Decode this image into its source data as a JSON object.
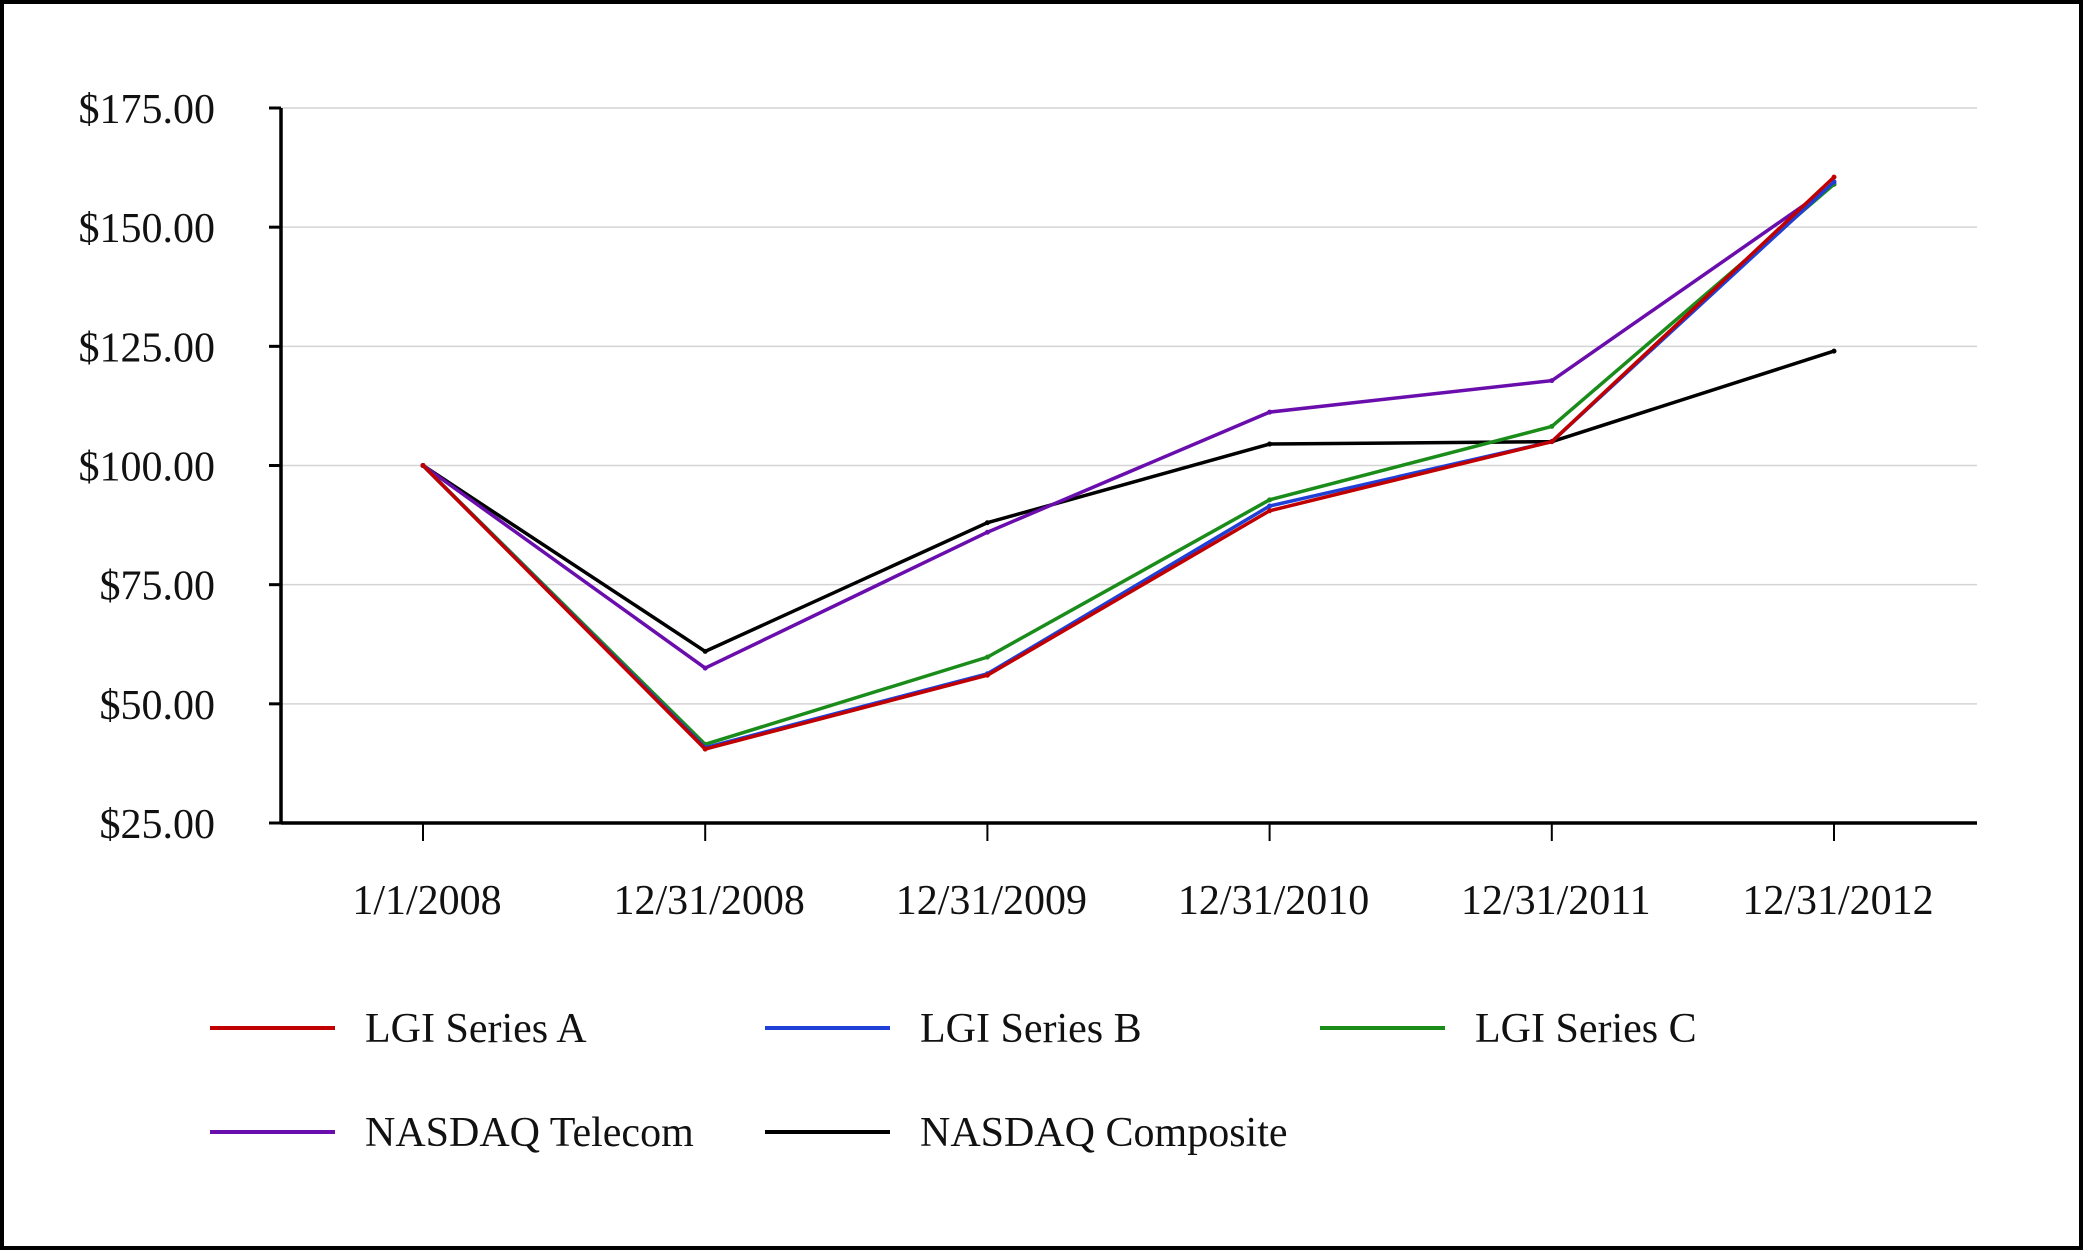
{
  "chart_data": {
    "type": "line",
    "title": "",
    "xlabel": "",
    "ylabel": "",
    "categories": [
      "1/1/2008",
      "12/31/2008",
      "12/31/2009",
      "12/31/2010",
      "12/31/2011",
      "12/31/2012"
    ],
    "ylim": [
      25,
      175
    ],
    "y_ticks": [
      25,
      50,
      75,
      100,
      125,
      150,
      175
    ],
    "y_tick_labels": [
      "$25.00",
      "$50.00",
      "$75.00",
      "$100.00",
      "$125.00",
      "$150.00",
      "$175.00"
    ],
    "grid": true,
    "legend_position": "bottom",
    "series": [
      {
        "key": "lgi-series-a",
        "name": "LGI Series A",
        "color": "#c00000",
        "values": [
          100.0,
          40.5,
          56.0,
          90.5,
          105.0,
          160.5
        ]
      },
      {
        "key": "lgi-series-b",
        "name": "LGI Series B",
        "color": "#1f3fd6",
        "values": [
          100.0,
          40.8,
          56.3,
          91.5,
          105.0,
          159.5
        ]
      },
      {
        "key": "lgi-series-c",
        "name": "LGI Series C",
        "color": "#1a8c1a",
        "values": [
          100.0,
          41.5,
          59.8,
          92.8,
          108.2,
          159.0
        ]
      },
      {
        "key": "nasdaq-telecom",
        "name": "NASDAQ Telecom",
        "color": "#6a0dad",
        "values": [
          100.0,
          57.5,
          86.0,
          111.2,
          117.8,
          159.0
        ]
      },
      {
        "key": "nasdaq-composite",
        "name": "NASDAQ Composite",
        "color": "#000000",
        "values": [
          100.0,
          61.0,
          88.0,
          104.5,
          105.0,
          124.0
        ]
      }
    ]
  }
}
